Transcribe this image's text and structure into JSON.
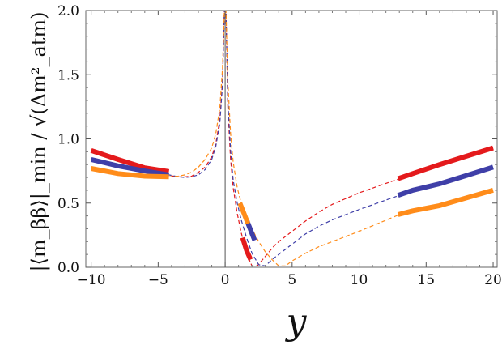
{
  "chart_data": {
    "type": "line",
    "xlabel": "y",
    "ylabel": "|⟨m_ββ⟩|_min / √(Δm²_atm)",
    "xlim": [
      -10.4,
      20.3
    ],
    "ylim": [
      0,
      2.0
    ],
    "x_ticks": [
      -10,
      -5,
      0,
      5,
      10,
      15,
      20
    ],
    "y_ticks": [
      0.0,
      0.5,
      1.0,
      1.5,
      2.0
    ],
    "x_tick_labels": [
      "−10",
      "−5",
      "0",
      "5",
      "10",
      "15",
      "20"
    ],
    "y_tick_labels": [
      "0.0",
      "0.5",
      "1.0",
      "1.5",
      "2.0"
    ],
    "grid": false,
    "legend": "none",
    "series": [
      {
        "color": "#e41a1c",
        "dashed_x": [
          -10,
          -8,
          -6,
          -5,
          -4.2,
          -3.5,
          -3,
          -2.5,
          -2,
          -1.5,
          -1,
          -0.7,
          -0.4,
          -0.2,
          -0.06,
          0.06,
          0.2,
          0.4,
          0.6,
          0.9,
          1.2,
          1.6,
          2.0,
          2.4,
          2.8,
          3.2,
          3.6,
          4.0,
          5,
          6,
          7,
          8,
          10,
          13,
          16,
          20
        ],
        "dashed_y": [
          0.91,
          0.84,
          0.775,
          0.745,
          0.715,
          0.705,
          0.705,
          0.71,
          0.74,
          0.78,
          0.86,
          0.96,
          1.15,
          1.45,
          2.0,
          2.0,
          1.25,
          0.85,
          0.62,
          0.42,
          0.27,
          0.11,
          0.01,
          0.01,
          0.06,
          0.11,
          0.16,
          0.2,
          0.28,
          0.36,
          0.43,
          0.49,
          0.58,
          0.69,
          0.8,
          0.93
        ],
        "thick_segments": [
          {
            "x": [
              -10,
              -8,
              -6,
              -4.2
            ],
            "y": [
              0.91,
              0.84,
              0.775,
              0.745
            ]
          },
          {
            "x": [
              1.3,
              1.6,
              1.9
            ],
            "y": [
              0.23,
              0.13,
              0.06
            ]
          },
          {
            "x": [
              12.9,
              14,
              16,
              18,
              20
            ],
            "y": [
              0.69,
              0.73,
              0.8,
              0.865,
              0.93
            ]
          }
        ]
      },
      {
        "color": "#3f3fa8",
        "dashed_x": [
          -10,
          -8,
          -6,
          -5,
          -4.2,
          -3.5,
          -3,
          -2.5,
          -2,
          -1.5,
          -1,
          -0.7,
          -0.4,
          -0.2,
          -0.06,
          0.06,
          0.2,
          0.4,
          0.6,
          0.9,
          1.2,
          1.6,
          2.0,
          2.5,
          3.0,
          3.5,
          4.0,
          5,
          6,
          7,
          8,
          10,
          13,
          16,
          20
        ],
        "dashed_y": [
          0.84,
          0.79,
          0.75,
          0.73,
          0.72,
          0.705,
          0.7,
          0.705,
          0.72,
          0.76,
          0.84,
          0.94,
          1.12,
          1.42,
          2.0,
          2.0,
          1.3,
          0.92,
          0.68,
          0.5,
          0.37,
          0.23,
          0.11,
          0.02,
          0.01,
          0.06,
          0.1,
          0.18,
          0.26,
          0.32,
          0.37,
          0.45,
          0.56,
          0.65,
          0.78
        ],
        "thick_segments": [
          {
            "x": [
              -10,
              -8,
              -6,
              -4.2
            ],
            "y": [
              0.84,
              0.79,
              0.75,
              0.72
            ]
          },
          {
            "x": [
              1.6,
              1.9,
              2.2
            ],
            "y": [
              0.37,
              0.29,
              0.21
            ]
          },
          {
            "x": [
              12.9,
              14,
              16,
              18,
              20
            ],
            "y": [
              0.56,
              0.6,
              0.65,
              0.715,
              0.78
            ]
          }
        ]
      },
      {
        "color": "#ff8c1a",
        "dashed_x": [
          -10,
          -8,
          -6,
          -5,
          -4.2,
          -3.5,
          -3,
          -2.5,
          -2,
          -1.5,
          -1,
          -0.7,
          -0.4,
          -0.2,
          -0.06,
          0.06,
          0.2,
          0.4,
          0.6,
          0.9,
          1.2,
          1.6,
          2.0,
          2.5,
          3.0,
          3.5,
          4.0,
          4.5,
          5,
          6,
          7,
          8,
          10,
          13,
          16,
          20
        ],
        "dashed_y": [
          0.77,
          0.73,
          0.71,
          0.705,
          0.705,
          0.71,
          0.72,
          0.74,
          0.78,
          0.84,
          0.93,
          1.04,
          1.24,
          1.55,
          2.0,
          2.0,
          1.45,
          1.05,
          0.82,
          0.62,
          0.5,
          0.38,
          0.3,
          0.2,
          0.12,
          0.06,
          0.01,
          0.01,
          0.05,
          0.11,
          0.16,
          0.2,
          0.28,
          0.41,
          0.48,
          0.6
        ],
        "thick_segments": [
          {
            "x": [
              -10,
              -8,
              -6,
              -4.2
            ],
            "y": [
              0.77,
              0.73,
              0.71,
              0.705
            ]
          },
          {
            "x": [
              1.1,
              1.4,
              1.7
            ],
            "y": [
              0.5,
              0.42,
              0.34
            ]
          },
          {
            "x": [
              12.9,
              14,
              16,
              18,
              20
            ],
            "y": [
              0.41,
              0.44,
              0.48,
              0.54,
              0.6
            ]
          }
        ]
      }
    ]
  }
}
